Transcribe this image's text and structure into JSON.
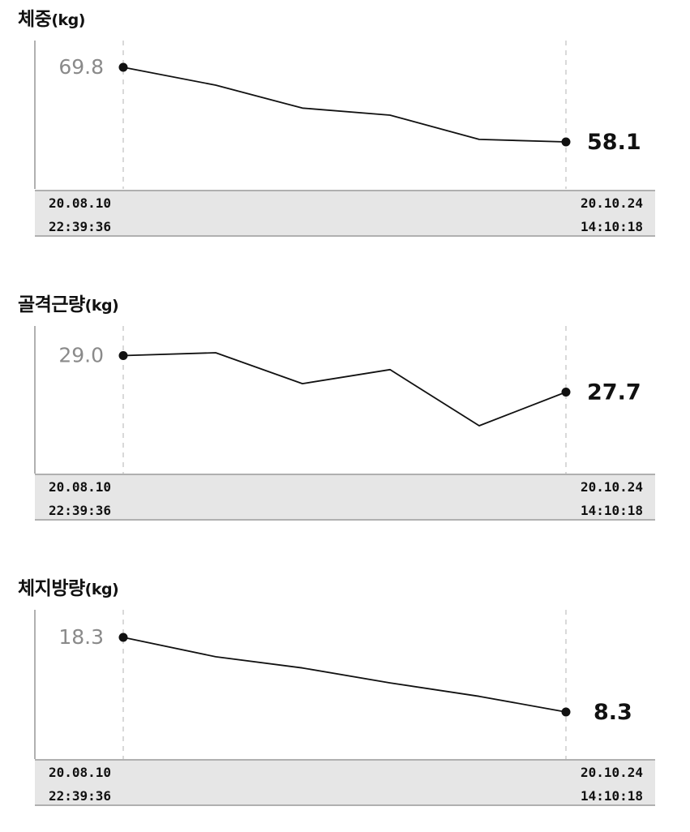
{
  "chart_data": [
    {
      "type": "line",
      "title": "체중",
      "unit": "(kg)",
      "values": [
        69.8,
        67.0,
        63.4,
        62.3,
        58.5,
        58.1
      ],
      "start_label": "69.8",
      "end_label": "58.1",
      "start_date": "20.08.10",
      "start_time": "22:39:36",
      "end_date": "20.10.24",
      "end_time": "14:10:18"
    },
    {
      "type": "line",
      "title": "골격근량",
      "unit": "(kg)",
      "values": [
        29.0,
        29.1,
        28.0,
        28.5,
        26.5,
        27.7
      ],
      "start_label": "29.0",
      "end_label": "27.7",
      "start_date": "20.08.10",
      "start_time": "22:39:36",
      "end_date": "20.10.24",
      "end_time": "14:10:18"
    },
    {
      "type": "line",
      "title": "체지방량",
      "unit": "(kg)",
      "values": [
        18.3,
        15.7,
        14.2,
        12.2,
        10.4,
        8.3
      ],
      "start_label": "18.3",
      "end_label": "8.3",
      "start_date": "20.08.10",
      "start_time": "22:39:36",
      "end_date": "20.10.24",
      "end_time": "14:10:18"
    }
  ],
  "colors": {
    "line": "#111111",
    "start_label": "#8a8a8a",
    "axis": "#b0b0b0",
    "guide": "#d9d9d9",
    "footer_bg": "#e6e6e6"
  }
}
